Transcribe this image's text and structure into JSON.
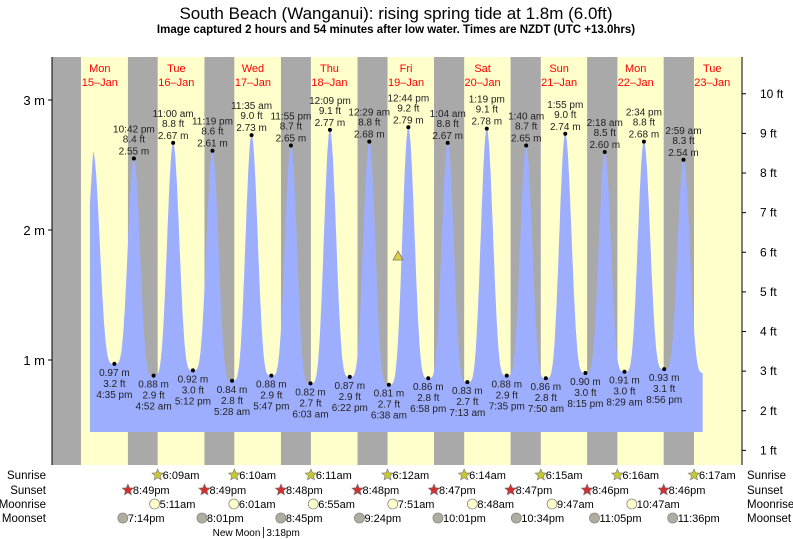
{
  "chart_data": {
    "type": "area",
    "title": "South Beach (Wanganui): rising  spring tide at 1.8m (6.0ft)",
    "subtitle": "Image captured 2 hours and 54 minutes after low water. Times are NZDT (UTC +13.0hrs)",
    "time_origin": "Mon 15-Jan 00:00",
    "x_range_hours": [
      -2.8,
      213.5
    ],
    "y_range_m": [
      0.2,
      3.29
    ],
    "left_axis": {
      "unit": "m",
      "ticks": [
        {
          "v": 1,
          "label": "1 m"
        },
        {
          "v": 2,
          "label": "2 m"
        },
        {
          "v": 3,
          "label": "3 m"
        }
      ]
    },
    "right_axis": {
      "unit": "ft",
      "ticks": [
        {
          "v": 1,
          "label": "1 ft"
        },
        {
          "v": 2,
          "label": "2 ft"
        },
        {
          "v": 3,
          "label": "3 ft"
        },
        {
          "v": 4,
          "label": "4 ft"
        },
        {
          "v": 5,
          "label": "5 ft"
        },
        {
          "v": 6,
          "label": "6 ft"
        },
        {
          "v": 7,
          "label": "7 ft"
        },
        {
          "v": 8,
          "label": "8 ft"
        },
        {
          "v": 9,
          "label": "9 ft"
        },
        {
          "v": 10,
          "label": "10 ft"
        }
      ]
    },
    "days": [
      {
        "dow": "Mon",
        "date": "15–Jan",
        "noon_h": 12
      },
      {
        "dow": "Tue",
        "date": "16–Jan",
        "noon_h": 36
      },
      {
        "dow": "Wed",
        "date": "17–Jan",
        "noon_h": 60
      },
      {
        "dow": "Thu",
        "date": "18–Jan",
        "noon_h": 84
      },
      {
        "dow": "Fri",
        "date": "19–Jan",
        "noon_h": 108
      },
      {
        "dow": "Sat",
        "date": "20–Jan",
        "noon_h": 132
      },
      {
        "dow": "Sun",
        "date": "21–Jan",
        "noon_h": 156
      },
      {
        "dow": "Mon",
        "date": "22–Jan",
        "noon_h": 180
      },
      {
        "dow": "Tue",
        "date": "23–Jan",
        "noon_h": 204
      }
    ],
    "curve_start_h": 8.9,
    "curve_end_h": 201,
    "extrema": [
      {
        "type": "high",
        "h": 9.9,
        "m": 2.6
      },
      {
        "type": "low",
        "h": 16.58,
        "m": 0.97,
        "time": "4:35 pm",
        "ft": "3.2 ft",
        "m_label": "0.97 m"
      },
      {
        "type": "high",
        "h": 22.7,
        "m": 2.55,
        "time": "10:42 pm",
        "ft": "8.4 ft",
        "m_label": "2.55 m"
      },
      {
        "type": "low",
        "h": 28.87,
        "m": 0.88,
        "time": "4:52 am",
        "ft": "2.9 ft",
        "m_label": "0.88 m"
      },
      {
        "type": "high",
        "h": 35.0,
        "m": 2.67,
        "time": "11:00 am",
        "ft": "8.8 ft",
        "m_label": "2.67 m"
      },
      {
        "type": "low",
        "h": 41.2,
        "m": 0.92,
        "time": "5:12 pm",
        "ft": "3.0 ft",
        "m_label": "0.92 m"
      },
      {
        "type": "high",
        "h": 47.32,
        "m": 2.61,
        "time": "11:19 pm",
        "ft": "8.6 ft",
        "m_label": "2.61 m"
      },
      {
        "type": "low",
        "h": 53.47,
        "m": 0.84,
        "time": "5:28 am",
        "ft": "2.8 ft",
        "m_label": "0.84 m"
      },
      {
        "type": "high",
        "h": 59.58,
        "m": 2.73,
        "time": "11:35 am",
        "ft": "9.0 ft",
        "m_label": "2.73 m"
      },
      {
        "type": "low",
        "h": 65.78,
        "m": 0.88,
        "time": "5:47 pm",
        "ft": "2.9 ft",
        "m_label": "0.88 m"
      },
      {
        "type": "high",
        "h": 71.92,
        "m": 2.65,
        "time": "11:55 pm",
        "ft": "8.7 ft",
        "m_label": "2.65 m"
      },
      {
        "type": "low",
        "h": 78.05,
        "m": 0.82,
        "time": "6:03 am",
        "ft": "2.7 ft",
        "m_label": "0.82 m"
      },
      {
        "type": "high",
        "h": 84.15,
        "m": 2.77,
        "time": "12:09 pm",
        "ft": "9.1 ft",
        "m_label": "2.77 m"
      },
      {
        "type": "low",
        "h": 90.37,
        "m": 0.87,
        "time": "6:22 pm",
        "ft": "2.9 ft",
        "m_label": "0.87 m"
      },
      {
        "type": "high",
        "h": 96.48,
        "m": 2.68,
        "time": "12:29 am",
        "ft": "8.8 ft",
        "m_label": "2.68 m"
      },
      {
        "type": "low",
        "h": 102.63,
        "m": 0.81,
        "time": "6:38 am",
        "ft": "2.7 ft",
        "m_label": "0.81 m"
      },
      {
        "type": "high",
        "h": 108.73,
        "m": 2.79,
        "time": "12:44 pm",
        "ft": "9.2 ft",
        "m_label": "2.79 m"
      },
      {
        "type": "low",
        "h": 114.97,
        "m": 0.86,
        "time": "6:58 pm",
        "ft": "2.8 ft",
        "m_label": "0.86 m"
      },
      {
        "type": "high",
        "h": 121.07,
        "m": 2.67,
        "time": "1:04 am",
        "ft": "8.8 ft",
        "m_label": "2.67 m"
      },
      {
        "type": "low",
        "h": 127.22,
        "m": 0.83,
        "time": "7:13 am",
        "ft": "2.7 ft",
        "m_label": "0.83 m"
      },
      {
        "type": "high",
        "h": 133.32,
        "m": 2.78,
        "time": "1:19 pm",
        "ft": "9.1 ft",
        "m_label": "2.78 m"
      },
      {
        "type": "low",
        "h": 139.58,
        "m": 0.88,
        "time": "7:35 pm",
        "ft": "2.9 ft",
        "m_label": "0.88 m"
      },
      {
        "type": "high",
        "h": 145.67,
        "m": 2.65,
        "time": "1:40 am",
        "ft": "8.7 ft",
        "m_label": "2.65 m"
      },
      {
        "type": "low",
        "h": 151.83,
        "m": 0.86,
        "time": "7:50 am",
        "ft": "2.8 ft",
        "m_label": "0.86 m"
      },
      {
        "type": "high",
        "h": 157.92,
        "m": 2.74,
        "time": "1:55 pm",
        "ft": "9.0 ft",
        "m_label": "2.74 m"
      },
      {
        "type": "low",
        "h": 164.25,
        "m": 0.9,
        "time": "8:15 pm",
        "ft": "3.0 ft",
        "m_label": "0.90 m"
      },
      {
        "type": "high",
        "h": 170.3,
        "m": 2.6,
        "time": "2:18 am",
        "ft": "8.5 ft",
        "m_label": "2.60 m"
      },
      {
        "type": "low",
        "h": 176.48,
        "m": 0.91,
        "time": "8:29 am",
        "ft": "3.0 ft",
        "m_label": "0.91 m"
      },
      {
        "type": "high",
        "h": 182.57,
        "m": 2.68,
        "time": "2:34 pm",
        "ft": "8.8 ft",
        "m_label": "2.68 m"
      },
      {
        "type": "low",
        "h": 188.93,
        "m": 0.93,
        "time": "8:56 pm",
        "ft": "3.1 ft",
        "m_label": "0.93 m"
      },
      {
        "type": "high",
        "h": 194.98,
        "m": 2.54,
        "time": "2:59 am",
        "ft": "8.3 ft",
        "m_label": "2.54 m"
      },
      {
        "type": "low",
        "h": 201.5,
        "m": 0.9
      }
    ],
    "current": {
      "h": 105.5,
      "m": 1.8
    },
    "nights": [
      [
        -3.2,
        6.1
      ],
      [
        20.82,
        30.15
      ],
      [
        44.82,
        54.17
      ],
      [
        68.8,
        78.18
      ],
      [
        92.8,
        102.2
      ],
      [
        116.78,
        126.23
      ],
      [
        140.78,
        150.25
      ],
      [
        164.77,
        174.27
      ],
      [
        188.77,
        198.28
      ]
    ],
    "rows": [
      {
        "label": "Sunrise",
        "kind": "sunrise",
        "events": [
          {
            "h": 30.15,
            "t": "6:09am"
          },
          {
            "h": 54.17,
            "t": "6:10am"
          },
          {
            "h": 78.18,
            "t": "6:11am"
          },
          {
            "h": 102.2,
            "t": "6:12am"
          },
          {
            "h": 126.23,
            "t": "6:14am"
          },
          {
            "h": 150.25,
            "t": "6:15am"
          },
          {
            "h": 174.27,
            "t": "6:16am"
          },
          {
            "h": 198.28,
            "t": "6:17am"
          }
        ]
      },
      {
        "label": "Sunset",
        "kind": "sunset",
        "events": [
          {
            "h": 20.82,
            "t": "8:49pm"
          },
          {
            "h": 44.82,
            "t": "8:49pm"
          },
          {
            "h": 68.8,
            "t": "8:48pm"
          },
          {
            "h": 92.8,
            "t": "8:48pm"
          },
          {
            "h": 116.78,
            "t": "8:47pm"
          },
          {
            "h": 140.78,
            "t": "8:47pm"
          },
          {
            "h": 164.77,
            "t": "8:46pm"
          },
          {
            "h": 188.77,
            "t": "8:46pm"
          }
        ]
      },
      {
        "label": "Moonrise",
        "kind": "moonrise",
        "events": [
          {
            "h": 29.18,
            "t": "5:11am"
          },
          {
            "h": 54.02,
            "t": "6:01am"
          },
          {
            "h": 78.92,
            "t": "6:55am"
          },
          {
            "h": 103.85,
            "t": "7:51am"
          },
          {
            "h": 128.8,
            "t": "8:48am"
          },
          {
            "h": 153.78,
            "t": "9:47am"
          },
          {
            "h": 178.78,
            "t": "10:47am"
          }
        ]
      },
      {
        "label": "Moonset",
        "kind": "moonset",
        "events": [
          {
            "h": 19.23,
            "t": "7:14pm"
          },
          {
            "h": 44.02,
            "t": "8:01pm"
          },
          {
            "h": 68.75,
            "t": "8:45pm"
          },
          {
            "h": 93.4,
            "t": "9:24pm"
          },
          {
            "h": 118.02,
            "t": "10:01pm"
          },
          {
            "h": 142.57,
            "t": "10:34pm"
          },
          {
            "h": 167.08,
            "t": "11:05pm"
          },
          {
            "h": 191.6,
            "t": "11:36pm"
          }
        ]
      }
    ],
    "moon_phase": {
      "label": "New Moon",
      "time": "3:18pm",
      "h": 63.3
    },
    "colors": {
      "day": "#ffffcc",
      "night": "#a9a9a9",
      "water": "#9eaeff",
      "day_label": "#ff0000",
      "sunrise": "#c8c832",
      "sunset": "#d03030",
      "moonrise": "#ffffcc",
      "moonset": "#b0ada0",
      "marker": "#e0d040"
    }
  }
}
